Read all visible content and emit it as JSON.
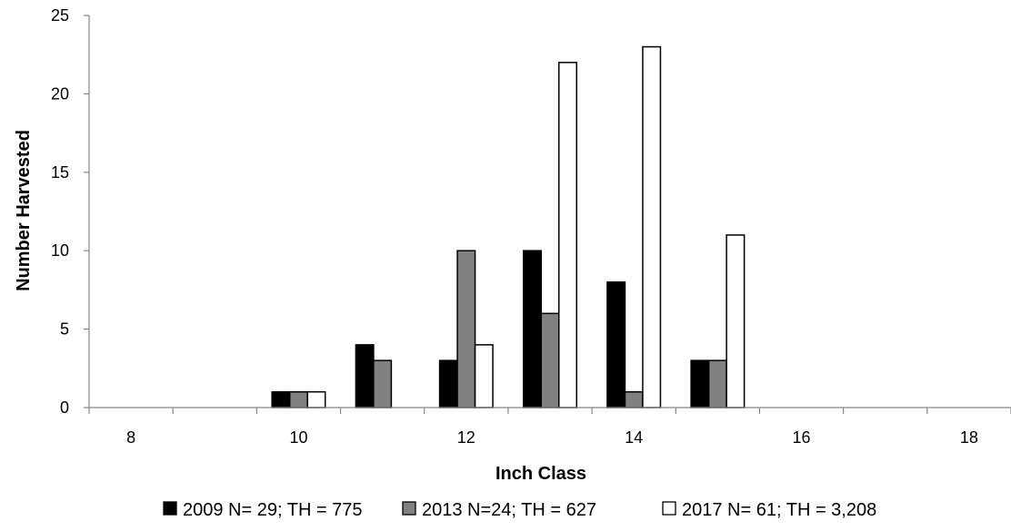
{
  "chart_data": {
    "type": "bar",
    "title": "",
    "xlabel": "Inch Class",
    "ylabel": "Number Harvested",
    "ylim": [
      0,
      25
    ],
    "yticks": [
      0,
      5,
      10,
      15,
      20,
      25
    ],
    "xticks": [
      8,
      10,
      12,
      14,
      16,
      18
    ],
    "categories": [
      8,
      9,
      10,
      11,
      12,
      13,
      14,
      15,
      16,
      17,
      18
    ],
    "series": [
      {
        "name": "2009 N= 29; TH = 775",
        "color": "#000000",
        "values": [
          0,
          0,
          1,
          4,
          3,
          10,
          8,
          3,
          0,
          0,
          0
        ]
      },
      {
        "name": "2013 N=24; TH = 627",
        "color": "#808080",
        "values": [
          0,
          0,
          1,
          3,
          10,
          6,
          1,
          3,
          0,
          0,
          0
        ]
      },
      {
        "name": "2017 N= 61; TH = 3,208",
        "color": "#ffffff",
        "values": [
          0,
          0,
          1,
          0,
          4,
          22,
          23,
          11,
          0,
          0,
          0
        ]
      }
    ],
    "grid": false,
    "legend_position": "bottom"
  }
}
